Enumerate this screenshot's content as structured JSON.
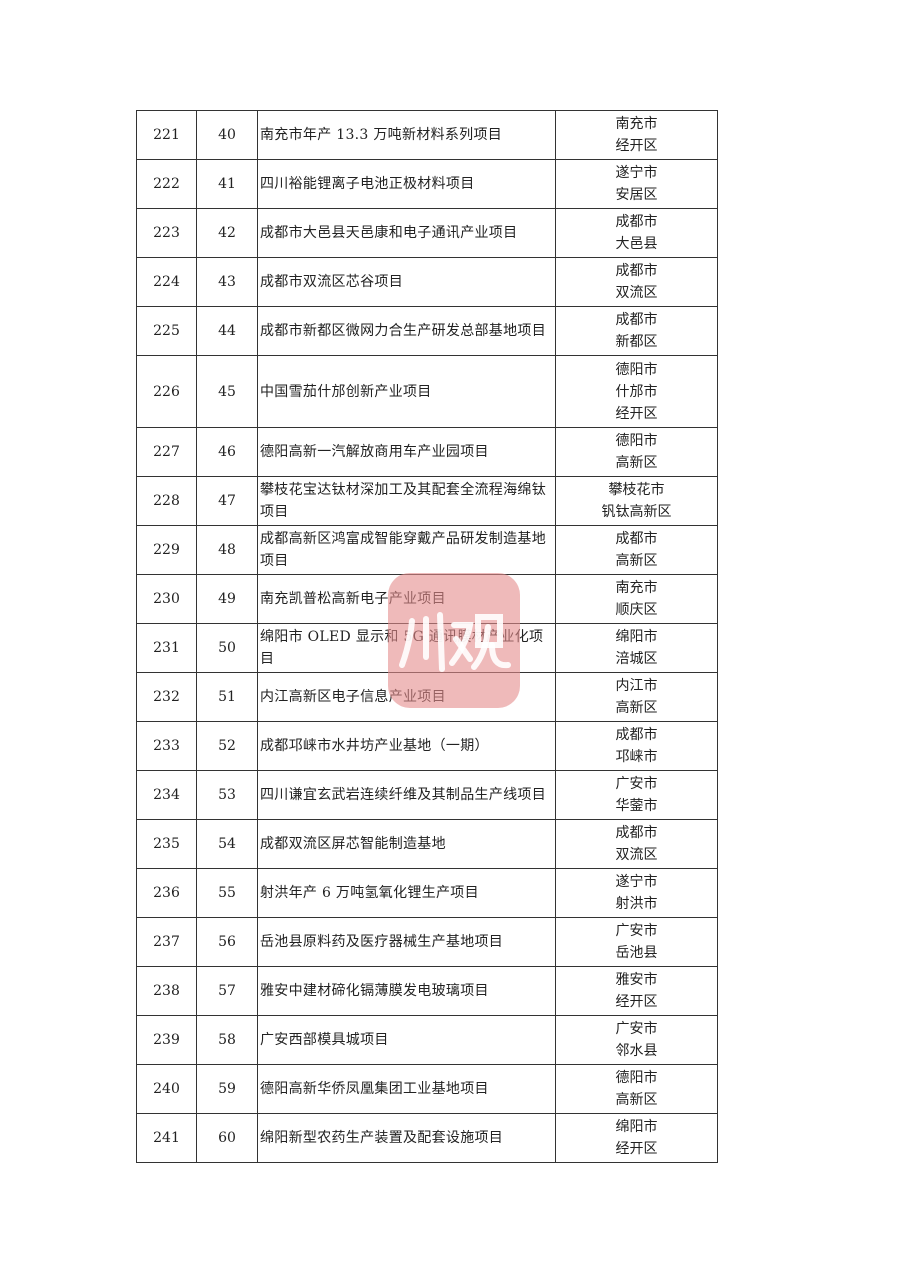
{
  "table": {
    "rows": [
      {
        "seq": "221",
        "no": "40",
        "name": "南充市年产 13.3 万吨新材料系列项目",
        "location": [
          "南充市",
          "经开区"
        ]
      },
      {
        "seq": "222",
        "no": "41",
        "name": "四川裕能锂离子电池正极材料项目",
        "location": [
          "遂宁市",
          "安居区"
        ]
      },
      {
        "seq": "223",
        "no": "42",
        "name": "成都市大邑县天邑康和电子通讯产业项目",
        "location": [
          "成都市",
          "大邑县"
        ]
      },
      {
        "seq": "224",
        "no": "43",
        "name": "成都市双流区芯谷项目",
        "location": [
          "成都市",
          "双流区"
        ]
      },
      {
        "seq": "225",
        "no": "44",
        "name": "成都市新都区微网力合生产研发总部基地项目",
        "location": [
          "成都市",
          "新都区"
        ]
      },
      {
        "seq": "226",
        "no": "45",
        "name": "中国雪茄什邡创新产业项目",
        "location": [
          "德阳市",
          "什邡市",
          "经开区"
        ]
      },
      {
        "seq": "227",
        "no": "46",
        "name": "德阳高新一汽解放商用车产业园项目",
        "location": [
          "德阳市",
          "高新区"
        ]
      },
      {
        "seq": "228",
        "no": "47",
        "name": "攀枝花宝达钛材深加工及其配套全流程海绵钛项目",
        "location": [
          "攀枝花市",
          "钒钛高新区"
        ]
      },
      {
        "seq": "229",
        "no": "48",
        "name": "成都高新区鸿富成智能穿戴产品研发制造基地项目",
        "location": [
          "成都市",
          "高新区"
        ]
      },
      {
        "seq": "230",
        "no": "49",
        "name": "南充凯普松高新电子产业项目",
        "location": [
          "南充市",
          "顺庆区"
        ]
      },
      {
        "seq": "231",
        "no": "50",
        "name": "绵阳市 OLED 显示和 5G 通讯膜材产业化项目",
        "location": [
          "绵阳市",
          "涪城区"
        ]
      },
      {
        "seq": "232",
        "no": "51",
        "name": "内江高新区电子信息产业项目",
        "location": [
          "内江市",
          "高新区"
        ]
      },
      {
        "seq": "233",
        "no": "52",
        "name": "成都邛崃市水井坊产业基地（一期）",
        "location": [
          "成都市",
          "邛崃市"
        ]
      },
      {
        "seq": "234",
        "no": "53",
        "name": "四川谦宜玄武岩连续纤维及其制品生产线项目",
        "location": [
          "广安市",
          "华蓥市"
        ]
      },
      {
        "seq": "235",
        "no": "54",
        "name": "成都双流区屏芯智能制造基地",
        "location": [
          "成都市",
          "双流区"
        ]
      },
      {
        "seq": "236",
        "no": "55",
        "name": "射洪年产 6 万吨氢氧化锂生产项目",
        "location": [
          "遂宁市",
          "射洪市"
        ]
      },
      {
        "seq": "237",
        "no": "56",
        "name": "岳池县原料药及医疗器械生产基地项目",
        "location": [
          "广安市",
          "岳池县"
        ]
      },
      {
        "seq": "238",
        "no": "57",
        "name": "雅安中建材碲化镉薄膜发电玻璃项目",
        "location": [
          "雅安市",
          "经开区"
        ]
      },
      {
        "seq": "239",
        "no": "58",
        "name": "广安西部模具城项目",
        "location": [
          "广安市",
          "邻水县"
        ]
      },
      {
        "seq": "240",
        "no": "59",
        "name": "德阳高新华侨凤凰集团工业基地项目",
        "location": [
          "德阳市",
          "高新区"
        ]
      },
      {
        "seq": "241",
        "no": "60",
        "name": "绵阳新型农药生产装置及配套设施项目",
        "location": [
          "绵阳市",
          "经开区"
        ]
      }
    ]
  },
  "watermark": {
    "text": "川观",
    "color": "#e48c8c"
  }
}
